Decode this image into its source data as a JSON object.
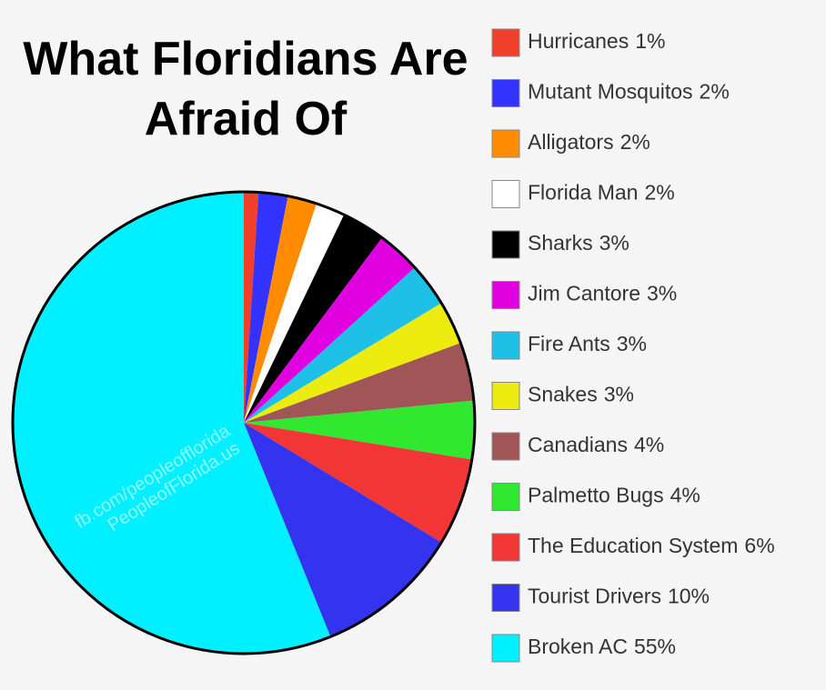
{
  "chart_data": {
    "type": "pie",
    "title": "What Floridians Are Afraid Of",
    "categories": [
      "Hurricanes",
      "Mutant Mosquitos",
      "Alligators",
      "Florida Man",
      "Sharks",
      "Jim Cantore",
      "Fire Ants",
      "Snakes",
      "Canadians",
      "Palmetto Bugs",
      "The Education System",
      "Tourist Drivers",
      "Broken AC"
    ],
    "values": [
      1,
      2,
      2,
      2,
      3,
      3,
      3,
      3,
      4,
      4,
      6,
      10,
      55
    ],
    "value_labels": [
      "1%",
      "2%",
      "2%",
      "2%",
      "3%",
      "3%",
      "3%",
      "3%",
      "4%",
      "4%",
      "6%",
      "10%",
      "55%"
    ],
    "colors": [
      "#f0402c",
      "#3333ff",
      "#ff8c00",
      "#ffffff",
      "#000000",
      "#e000e0",
      "#1ec0e8",
      "#ecec10",
      "#a05656",
      "#30e830",
      "#f23636",
      "#3434f0",
      "#00f0ff"
    ],
    "annotations": [
      "fb.com/peopleofflorida",
      "PeopleofFlorida.us"
    ]
  }
}
